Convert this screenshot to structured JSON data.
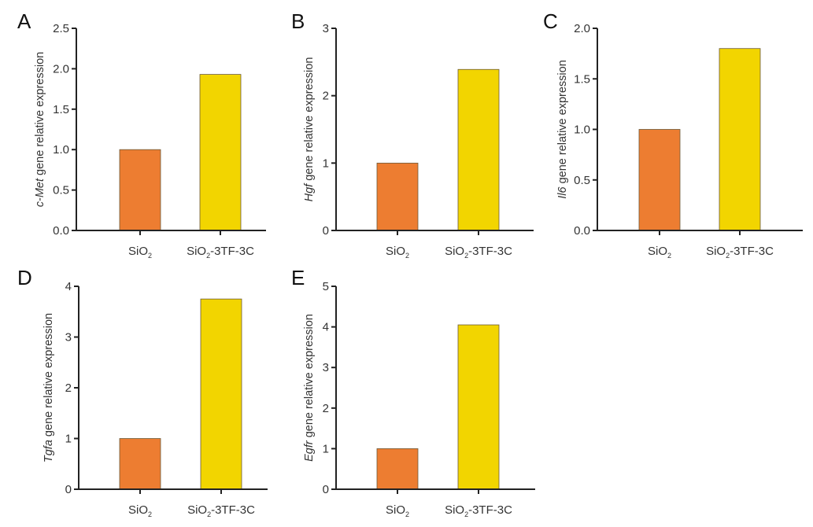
{
  "chart_data": [
    {
      "type": "bar",
      "panel": "A",
      "title": "",
      "ylabel_gene": "c-Met",
      "ylabel_rest": " gene relative expression",
      "xlabel": "",
      "categories": [
        {
          "base": "SiO",
          "sub": "2",
          "suffix": ""
        },
        {
          "base": "SiO",
          "sub": "2",
          "suffix": "-3TF-3C"
        }
      ],
      "values": [
        1.0,
        1.93
      ],
      "colors": [
        "#ED7D31",
        "#F2D500"
      ],
      "ylim": [
        0,
        2.5
      ],
      "yticks": [
        "0.0",
        "0.5",
        "1.0",
        "1.5",
        "2.0",
        "2.5"
      ],
      "ytick_values": [
        0,
        0.5,
        1.0,
        1.5,
        2.0,
        2.5
      ],
      "grid": false,
      "legend": "none"
    },
    {
      "type": "bar",
      "panel": "B",
      "title": "",
      "ylabel_gene": "Hgf",
      "ylabel_rest": " gene relative expression",
      "xlabel": "",
      "categories": [
        {
          "base": "SiO",
          "sub": "2",
          "suffix": ""
        },
        {
          "base": "SiO",
          "sub": "2",
          "suffix": "-3TF-3C"
        }
      ],
      "values": [
        1.0,
        2.39
      ],
      "colors": [
        "#ED7D31",
        "#F2D500"
      ],
      "ylim": [
        0,
        3
      ],
      "yticks": [
        "0",
        "1",
        "2",
        "3"
      ],
      "ytick_values": [
        0,
        1,
        2,
        3
      ],
      "grid": false,
      "legend": "none"
    },
    {
      "type": "bar",
      "panel": "C",
      "title": "",
      "ylabel_gene": "Il6",
      "ylabel_rest": " gene relative expression",
      "xlabel": "",
      "categories": [
        {
          "base": "SiO",
          "sub": "2",
          "suffix": ""
        },
        {
          "base": "SiO",
          "sub": "2",
          "suffix": "-3TF-3C"
        }
      ],
      "values": [
        1.0,
        1.8
      ],
      "colors": [
        "#ED7D31",
        "#F2D500"
      ],
      "ylim": [
        0,
        2.0
      ],
      "yticks": [
        "0.0",
        "0.5",
        "1.0",
        "1.5",
        "2.0"
      ],
      "ytick_values": [
        0,
        0.5,
        1.0,
        1.5,
        2.0
      ],
      "grid": false,
      "legend": "none"
    },
    {
      "type": "bar",
      "panel": "D",
      "title": "",
      "ylabel_gene": "Tgfa",
      "ylabel_rest": " gene relative expression",
      "xlabel": "",
      "categories": [
        {
          "base": "SiO",
          "sub": "2",
          "suffix": ""
        },
        {
          "base": "SiO",
          "sub": "2",
          "suffix": "-3TF-3C"
        }
      ],
      "values": [
        1.0,
        3.75
      ],
      "colors": [
        "#ED7D31",
        "#F2D500"
      ],
      "ylim": [
        0,
        4
      ],
      "yticks": [
        "0",
        "1",
        "2",
        "3",
        "4"
      ],
      "ytick_values": [
        0,
        1,
        2,
        3,
        4
      ],
      "grid": false,
      "legend": "none"
    },
    {
      "type": "bar",
      "panel": "E",
      "title": "",
      "ylabel_gene": "Egfr",
      "ylabel_rest": " gene relative expression",
      "xlabel": "",
      "categories": [
        {
          "base": "SiO",
          "sub": "2",
          "suffix": ""
        },
        {
          "base": "SiO",
          "sub": "2",
          "suffix": "-3TF-3C"
        }
      ],
      "values": [
        1.0,
        4.05
      ],
      "colors": [
        "#ED7D31",
        "#F2D500"
      ],
      "ylim": [
        0,
        5
      ],
      "yticks": [
        "0",
        "1",
        "2",
        "3",
        "4",
        "5"
      ],
      "ytick_values": [
        0,
        1,
        2,
        3,
        4,
        5
      ],
      "grid": false,
      "legend": "none"
    }
  ]
}
